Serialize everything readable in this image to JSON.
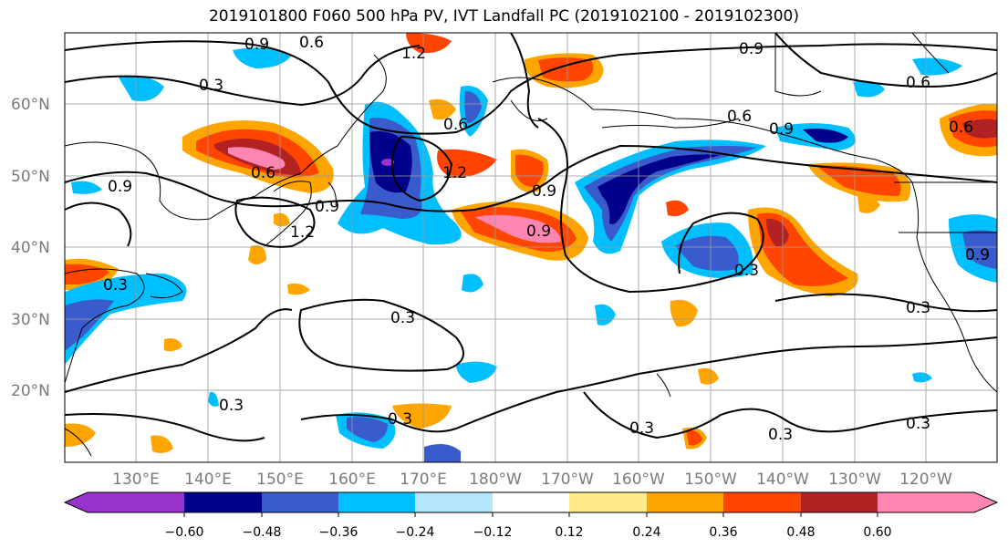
{
  "title": "2019101800 F060 500 hPa PV, IVT Landfall PC (2019102100 - 2019102300)",
  "latitude_labels": [
    "60°N",
    "50°N",
    "40°N",
    "30°N",
    "20°N"
  ],
  "longitude_labels": [
    "130°E",
    "140°E",
    "150°E",
    "160°E",
    "170°E",
    "180°W",
    "170°W",
    "160°W",
    "150°W",
    "140°W",
    "130°W",
    "120°W"
  ],
  "colorbar": {
    "colors": [
      "#9932cc",
      "#00008b",
      "#3a5bcc",
      "#00bfff",
      "#b3e5fc",
      "#ffffff",
      "#ffeb88",
      "#ffa500",
      "#ff4500",
      "#b22222",
      "#ff85b2"
    ],
    "tick_labels": [
      "−0.60",
      "−0.48",
      "−0.36",
      "−0.24",
      "−0.12",
      "0.12",
      "0.24",
      "0.36",
      "0.48",
      "0.60"
    ]
  },
  "contour_labels": [
    "0.9",
    "0.6",
    "1.2",
    "0.3",
    "0.6",
    "0.9",
    "0.6",
    "0.9",
    "0.6",
    "0.9",
    "1.2",
    "0.9",
    "0.6",
    "0.9",
    "0.3",
    "0.3",
    "0.3",
    "0.3",
    "0.3",
    "0.3",
    "0.3",
    "0.3",
    "0.3",
    "0.6",
    "0.9",
    "1.2",
    "0.9"
  ]
}
